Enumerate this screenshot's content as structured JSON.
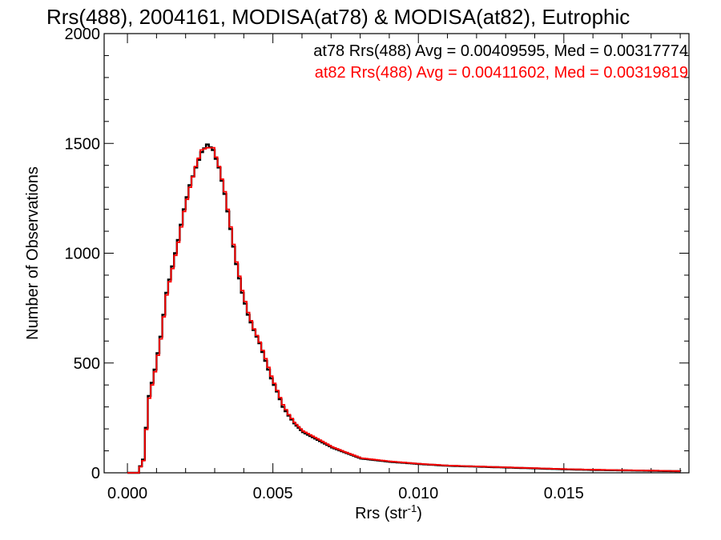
{
  "chart_data": {
    "type": "line",
    "title": "Rrs(488), 2004161, MODISA(at78) & MODISA(at82), Eutrophic",
    "xlabel": "Rrs (str",
    "xlabel_sup": "-1",
    "xlabel_close": ")",
    "ylabel": "Number of Observations",
    "xlim": [
      -0.0008,
      0.0193
    ],
    "ylim": [
      0,
      2000
    ],
    "x_ticks": [
      "0.000",
      "0.005",
      "0.010",
      "0.015"
    ],
    "x_tick_values": [
      0.0,
      0.005,
      0.01,
      0.015
    ],
    "y_ticks": [
      "0",
      "500",
      "1000",
      "1500",
      "2000"
    ],
    "y_tick_values": [
      0,
      500,
      1000,
      1500,
      2000
    ],
    "grid": false,
    "legend_position": "top-right",
    "x": [
      0.0,
      0.0003,
      0.0005,
      0.0007,
      0.0009,
      0.0011,
      0.0013,
      0.0015,
      0.0017,
      0.0019,
      0.0021,
      0.0023,
      0.0025,
      0.0027,
      0.0029,
      0.0031,
      0.0033,
      0.0035,
      0.0037,
      0.0039,
      0.0041,
      0.0043,
      0.0045,
      0.0047,
      0.0049,
      0.0051,
      0.0053,
      0.0055,
      0.0057,
      0.006,
      0.0065,
      0.007,
      0.0075,
      0.008,
      0.009,
      0.01,
      0.011,
      0.012,
      0.013,
      0.014,
      0.015,
      0.016,
      0.017,
      0.018,
      0.019
    ],
    "series": [
      {
        "name": "at78",
        "color": "#000000",
        "values": [
          0,
          0,
          60,
          350,
          470,
          620,
          820,
          940,
          1060,
          1200,
          1310,
          1390,
          1460,
          1495,
          1470,
          1390,
          1270,
          1110,
          950,
          820,
          720,
          650,
          590,
          510,
          430,
          370,
          300,
          260,
          225,
          185,
          150,
          115,
          90,
          65,
          50,
          40,
          32,
          28,
          24,
          20,
          16,
          13,
          11,
          9,
          7
        ]
      },
      {
        "name": "at82",
        "color": "#ff0000",
        "values": [
          0,
          0,
          55,
          340,
          460,
          610,
          810,
          930,
          1050,
          1190,
          1300,
          1395,
          1470,
          1480,
          1480,
          1395,
          1280,
          1120,
          960,
          830,
          730,
          655,
          595,
          520,
          440,
          375,
          310,
          265,
          230,
          190,
          155,
          118,
          92,
          67,
          52,
          41,
          33,
          29,
          25,
          21,
          17,
          14,
          12,
          10,
          8
        ]
      }
    ],
    "annotations": [
      {
        "text": "at78 Rrs(488) Avg = 0.00409595, Med = 0.00317774",
        "color": "#000000"
      },
      {
        "text": "at82 Rrs(488) Avg = 0.00411602, Med = 0.00319819",
        "color": "#ff0000"
      }
    ]
  }
}
